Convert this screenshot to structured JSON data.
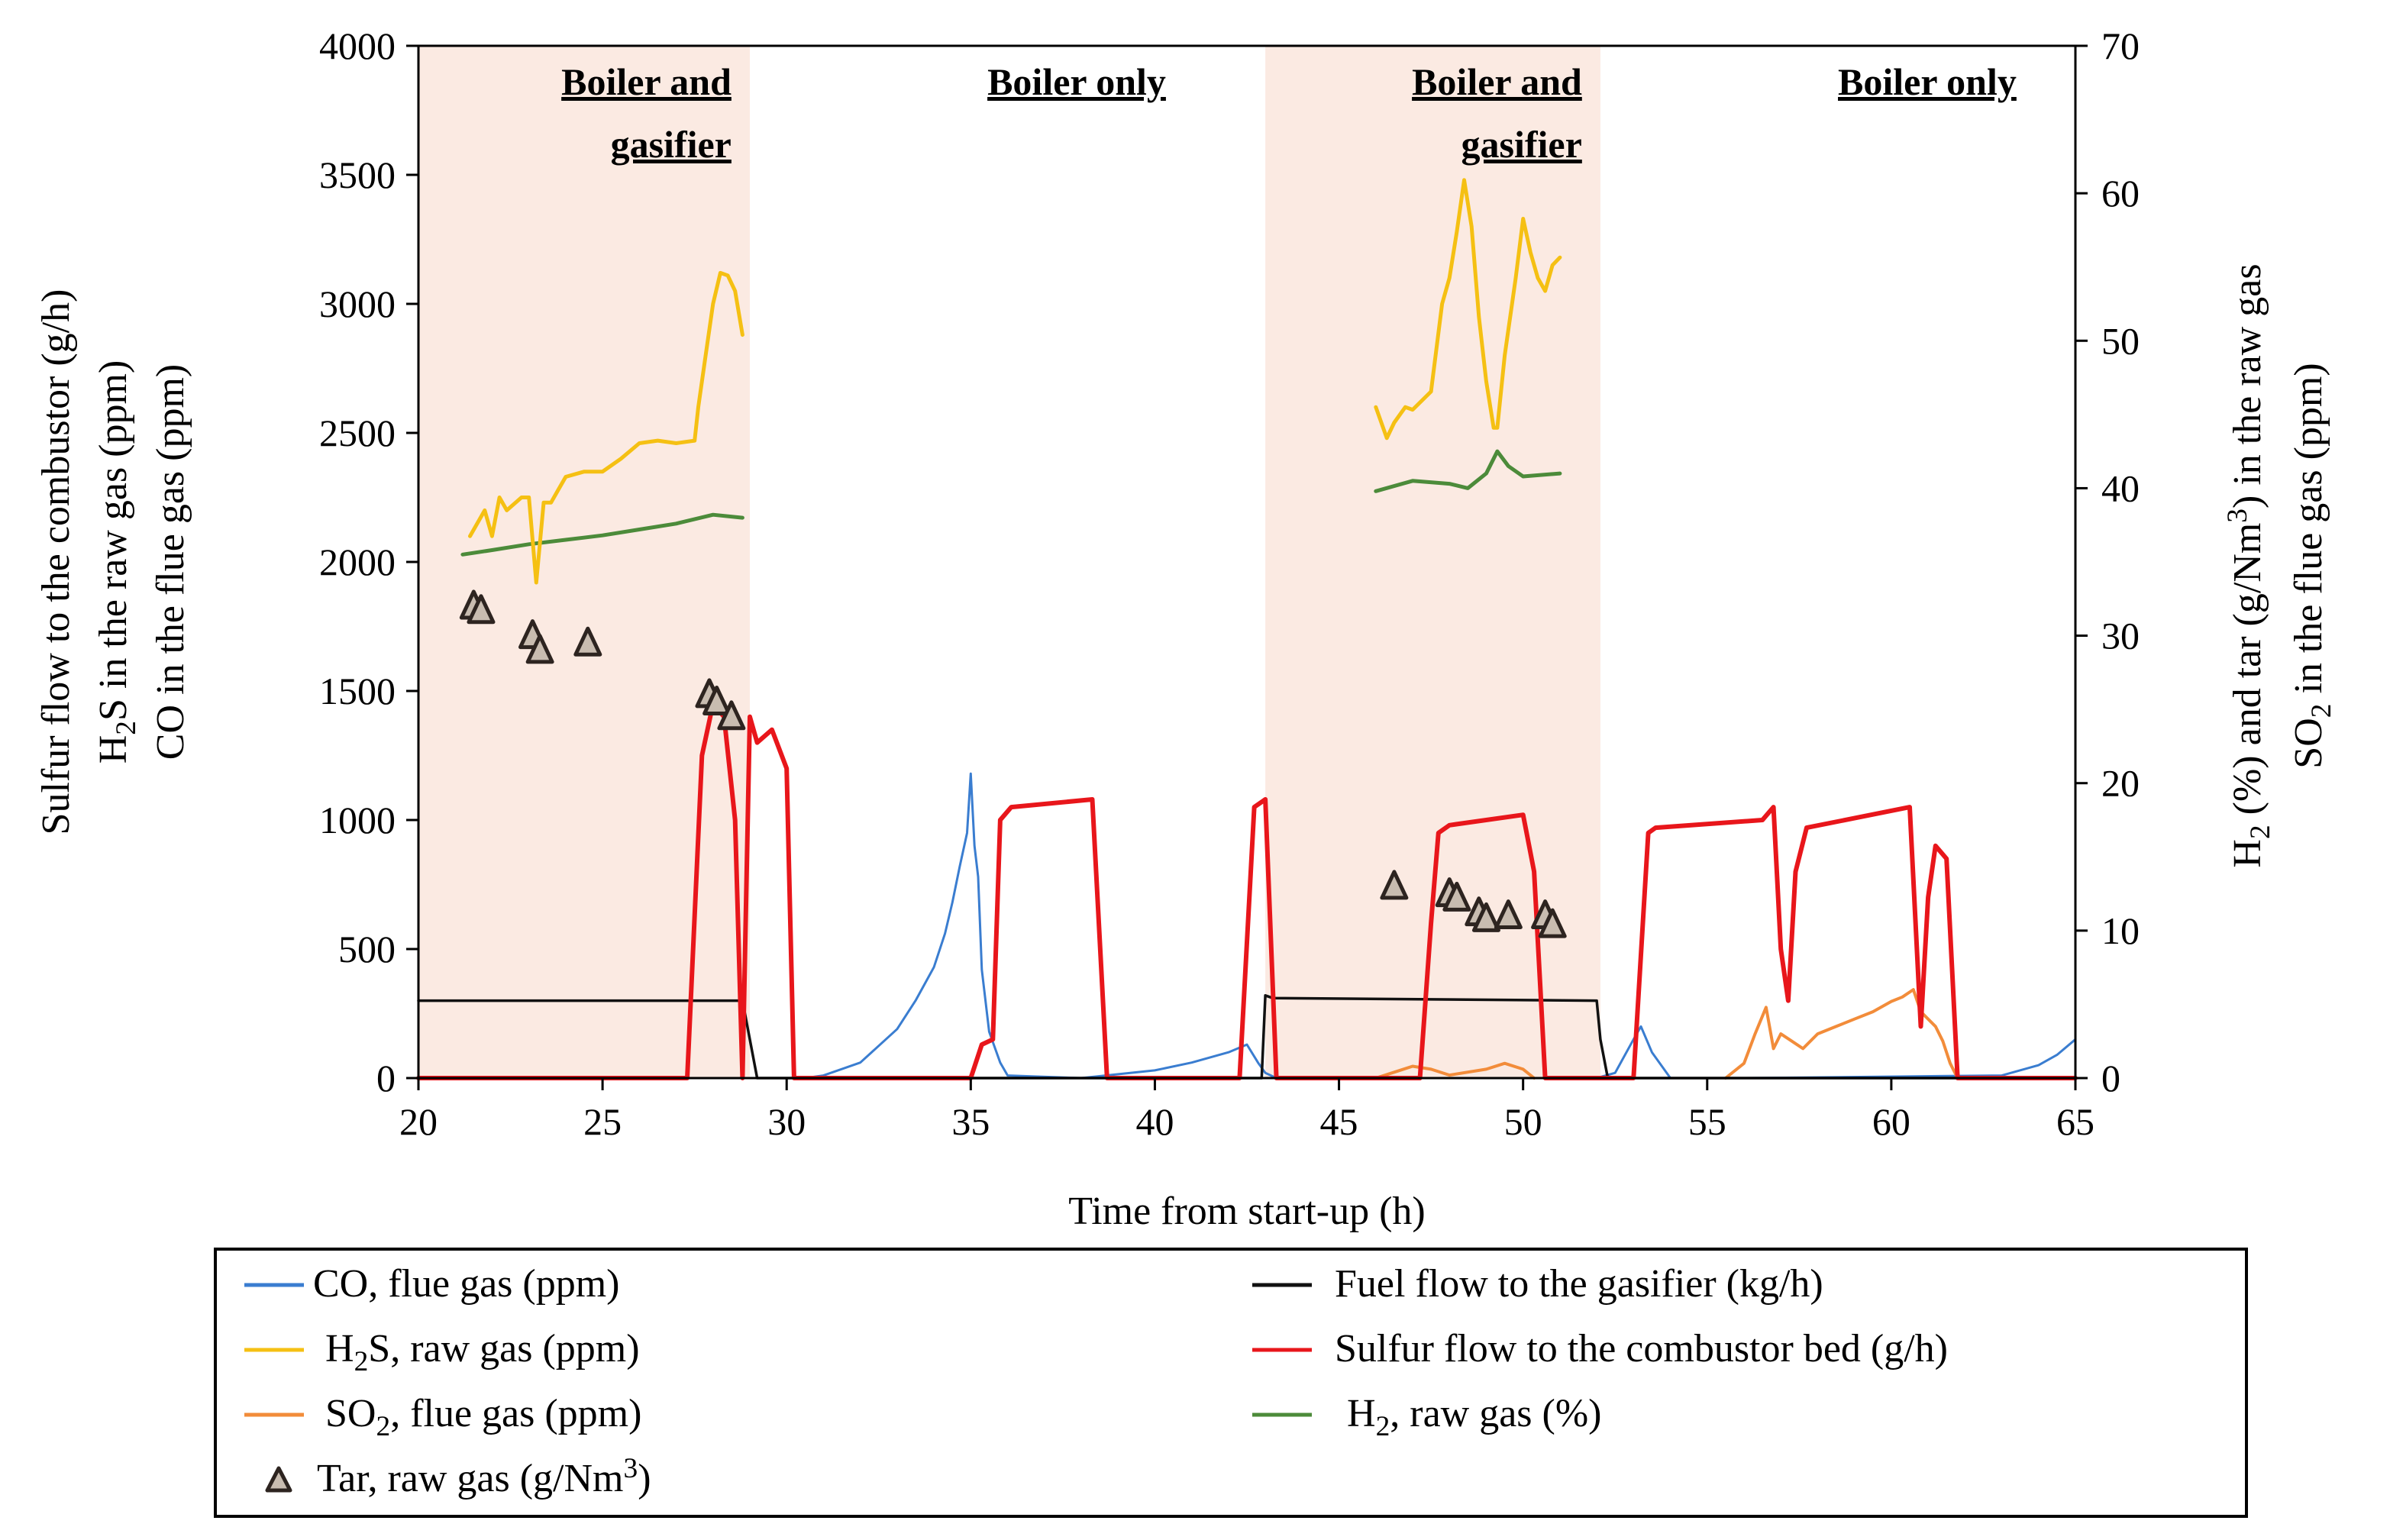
{
  "chart_data": {
    "type": "line",
    "title": "",
    "xlabel": "Time from start-up (h)",
    "ylabel_left": [
      "Sulfur flow to the combustor  (g/h)",
      "H2S in the raw gas (ppm)",
      "CO in the flue gas (ppm)"
    ],
    "ylabel_right": [
      "H2 (%)  and tar (g/Nm3) in the raw gas",
      "SO2 in the flue gas (ppm)"
    ],
    "xlim": [
      20,
      65
    ],
    "ylim_left": [
      0,
      4000
    ],
    "ylim_right": [
      0,
      70
    ],
    "x_ticks": [
      "20",
      "25",
      "30",
      "35",
      "40",
      "45",
      "50",
      "55",
      "60",
      "65"
    ],
    "y_left_ticks": [
      "0",
      "500",
      "1000",
      "1500",
      "2000",
      "2500",
      "3000",
      "3500",
      "4000"
    ],
    "y_right_ticks": [
      "0",
      "10",
      "20",
      "30",
      "40",
      "50",
      "60",
      "70"
    ],
    "shaded_regions": [
      {
        "start": 20.0,
        "end": 29.0,
        "label_lines": [
          "Boiler and",
          "gasifier"
        ],
        "color": "#fbeae2"
      },
      {
        "start": 43.0,
        "end": 52.1,
        "label_lines": [
          "Boiler and",
          "gasifier"
        ],
        "color": "#fbeae2"
      }
    ],
    "region_labels": [
      {
        "x_end": 28.5,
        "lines": [
          "Boiler and",
          "gasifier"
        ]
      },
      {
        "x_end": 40.3,
        "lines": [
          "Boiler only"
        ]
      },
      {
        "x_end": 51.6,
        "lines": [
          "Boiler and",
          "gasifier"
        ]
      },
      {
        "x_end": 63.4,
        "lines": [
          "Boiler only"
        ]
      }
    ],
    "series": [
      {
        "name": "CO, flue gas (ppm)",
        "axis": "left",
        "color": "#3a7dd0",
        "width": 3,
        "x": [
          20,
          30.5,
          31,
          32,
          33,
          33.5,
          34,
          34.3,
          34.5,
          34.7,
          34.9,
          35.0,
          35.1,
          35.2,
          35.3,
          35.5,
          35.8,
          36,
          38,
          40,
          41,
          42,
          42.5,
          42.8,
          43,
          43.3,
          44,
          52,
          52.5,
          53,
          53.2,
          53.5,
          54,
          56,
          63,
          64,
          64.5,
          65
        ],
        "y": [
          0,
          0,
          10,
          60,
          190,
          300,
          430,
          560,
          680,
          820,
          950,
          1180,
          900,
          780,
          420,
          180,
          60,
          10,
          0,
          30,
          60,
          100,
          130,
          60,
          20,
          0,
          0,
          0,
          20,
          150,
          200,
          100,
          0,
          0,
          10,
          50,
          90,
          150
        ]
      },
      {
        "name": "H2S, raw gas (ppm)",
        "axis": "left",
        "color": "#f5c013",
        "width": 5,
        "x": [
          21.4,
          21.6,
          21.8,
          22.0,
          22.2,
          22.4,
          22.8,
          23.0,
          23.2,
          23.4,
          23.6,
          23.8,
          24.0,
          24.5,
          25,
          25.5,
          26,
          26.5,
          27,
          27.5,
          27.6,
          27.8,
          28.0,
          28.2,
          28.4,
          28.6,
          28.8
        ],
        "y": [
          2100,
          2150,
          2200,
          2100,
          2250,
          2200,
          2250,
          2250,
          1920,
          2230,
          2230,
          2280,
          2330,
          2350,
          2350,
          2400,
          2460,
          2470,
          2460,
          2470,
          2600,
          2800,
          3000,
          3120,
          3110,
          3050,
          2880
        ],
        "segments": [
          {
            "x": [
              46.0,
              46.3,
              46.5,
              46.8,
              47.0,
              47.5,
              47.8,
              48.0,
              48.2,
              48.4,
              48.6,
              48.8,
              49.0,
              49.2,
              49.3,
              49.5,
              49.8,
              50.0,
              50.2,
              50.4,
              50.6,
              50.8,
              51.0
            ],
            "y": [
              2600,
              2480,
              2540,
              2600,
              2590,
              2660,
              3000,
              3100,
              3280,
              3480,
              3300,
              2950,
              2700,
              2520,
              2520,
              2800,
              3100,
              3330,
              3200,
              3100,
              3050,
              3150,
              3180
            ]
          }
        ]
      },
      {
        "name": "SO2, flue gas (ppm)",
        "axis": "right",
        "color": "#f28c3a",
        "width": 4,
        "x": [
          45,
          46,
          46.5,
          47,
          47.5,
          48,
          49,
          49.5,
          50,
          50.3
        ],
        "y": [
          0,
          0,
          0.4,
          0.8,
          0.6,
          0.2,
          0.6,
          1.0,
          0.6,
          0
        ],
        "segments": [
          {
            "x": [
              55.5,
              56,
              56.3,
              56.6,
              56.8,
              57,
              57.3,
              57.6,
              58,
              58.5,
              59,
              59.5,
              60,
              60.3,
              60.6,
              60.8,
              61,
              61.2,
              61.4,
              61.6,
              61.8
            ],
            "y": [
              0,
              1,
              3,
              4.8,
              2,
              3,
              2.5,
              2,
              3,
              3.5,
              4,
              4.5,
              5.2,
              5.5,
              6,
              4.5,
              4,
              3.5,
              2.5,
              1,
              0
            ]
          }
        ]
      },
      {
        "name": "H2, raw gas (%)",
        "axis": "right",
        "color": "#4c8b3a",
        "width": 5,
        "x": [
          21.2,
          22,
          23,
          24,
          25,
          26,
          27,
          28,
          28.8
        ],
        "y": [
          35.5,
          35.8,
          36.2,
          36.5,
          36.8,
          37.2,
          37.6,
          38.2,
          38.0
        ],
        "segments": [
          {
            "x": [
              46.0,
              47.0,
              48.0,
              48.5,
              49.0,
              49.3,
              49.6,
              50.0,
              51.0
            ],
            "y": [
              39.8,
              40.5,
              40.3,
              40.0,
              41.0,
              42.5,
              41.5,
              40.8,
              41.0
            ]
          }
        ]
      },
      {
        "name": "Fuel flow to the gasifier (kg/h)",
        "axis": "left",
        "color": "#111111",
        "width": 3.5,
        "x": [
          20,
          28.8,
          29.0,
          29.2,
          42.9,
          43.0,
          43.2,
          52.0,
          52.1,
          52.3,
          65
        ],
        "y": [
          300,
          300,
          150,
          0,
          0,
          320,
          310,
          300,
          150,
          0,
          0
        ]
      },
      {
        "name": "Sulfur flow to the combustor bed (g/h)",
        "axis": "left",
        "color": "#e8161b",
        "width": 6,
        "x": [
          20,
          27.3,
          27.7,
          28.0,
          28.3,
          28.6,
          28.8,
          29.0,
          29.2,
          29.6,
          30.0,
          30.2,
          30.5,
          35,
          35.3,
          35.6,
          35.8,
          36.1,
          38.3,
          38.7,
          42.3,
          42.7,
          43.0,
          43.3,
          45.5,
          46.8,
          47.2,
          47.5,
          47.7,
          48.0,
          50.0,
          50.3,
          50.6,
          52.6,
          53.0,
          53.4,
          53.6,
          56.5,
          56.8,
          57.0,
          57.2,
          57.4,
          57.7,
          60.5,
          60.8,
          61.0,
          61.2,
          61.5,
          61.8,
          65
        ],
        "y": [
          0,
          0,
          1250,
          1450,
          1400,
          1000,
          0,
          1400,
          1300,
          1350,
          1200,
          0,
          0,
          0,
          130,
          150,
          1000,
          1050,
          1080,
          0,
          0,
          1050,
          1080,
          0,
          0,
          0,
          0,
          600,
          950,
          980,
          1020,
          800,
          0,
          0,
          0,
          950,
          970,
          1000,
          1050,
          500,
          300,
          800,
          970,
          1050,
          200,
          700,
          900,
          850,
          0,
          0
        ]
      },
      {
        "name": "Tar, raw gas (g/Nm3)",
        "axis": "right",
        "color": "#6b615b",
        "marker": "triangle",
        "x": [
          21.5,
          21.7,
          23.1,
          23.3,
          24.6,
          27.9,
          28.1,
          28.5,
          46.5,
          48.0,
          48.2,
          48.8,
          49.0,
          49.6,
          50.6,
          50.8
        ],
        "y": [
          32.0,
          31.7,
          30.0,
          29.0,
          29.5,
          26.0,
          25.5,
          24.5,
          13.0,
          12.5,
          12.2,
          11.2,
          10.8,
          11.0,
          11.0,
          10.4
        ]
      }
    ],
    "legend": {
      "placement": "bottom",
      "entries": [
        {
          "label": "CO, flue gas (ppm)",
          "color": "#3a7dd0",
          "symbol": "line"
        },
        {
          "label": "Fuel flow to the gasifier (kg/h)",
          "color": "#111111",
          "symbol": "line"
        },
        {
          "label": "H2S, raw gas (ppm)",
          "color": "#f5c013",
          "symbol": "line"
        },
        {
          "label": "Sulfur flow to the combustor bed (g/h)",
          "color": "#e8161b",
          "symbol": "line"
        },
        {
          "label": "SO2,  flue gas (ppm)",
          "color": "#f28c3a",
          "symbol": "line"
        },
        {
          "label": "H2, raw gas (%)",
          "color": "#4c8b3a",
          "symbol": "line"
        },
        {
          "label": "Tar, raw gas (g/Nm3)",
          "color": "#6b615b",
          "symbol": "triangle"
        }
      ]
    }
  }
}
